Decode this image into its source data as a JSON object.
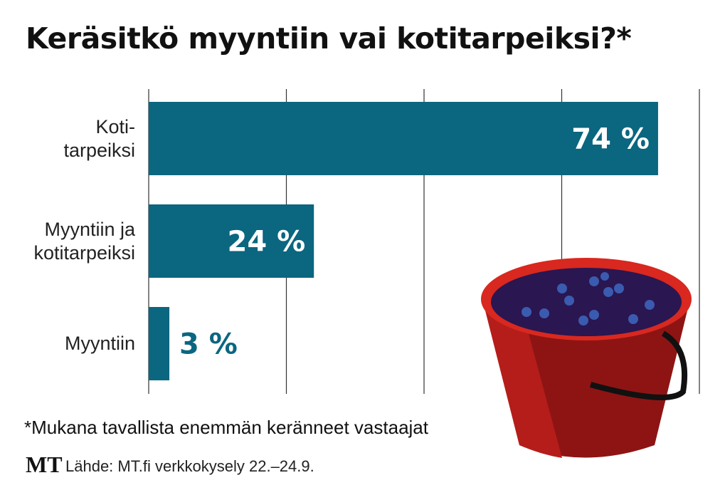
{
  "title": "Keräsitkö myyntiin vai kotitarpeiksi?*",
  "chart_data": {
    "type": "bar",
    "orientation": "horizontal",
    "categories": [
      [
        "Koti-",
        "tarpeiksi"
      ],
      [
        "Myyntiin ja",
        "kotitarpeiksi"
      ],
      [
        "Myyntiin"
      ]
    ],
    "values": [
      74,
      24,
      3
    ],
    "value_labels": [
      "74 %",
      "24 %",
      "3 %"
    ],
    "xlim": [
      0,
      80
    ],
    "gridlines": [
      0,
      20,
      40,
      60,
      80
    ],
    "grid": true,
    "bar_color": "#0b6680"
  },
  "footnote": "*Mukana tavallista enemmän keränneet vastaajat",
  "logo": "MT",
  "source": "Lähde: MT.fi verkkokysely 22.–24.9.",
  "colors": {
    "bucket": "#c0221c",
    "bucket_dark": "#7a0f0f",
    "berries": "#2a1650"
  }
}
